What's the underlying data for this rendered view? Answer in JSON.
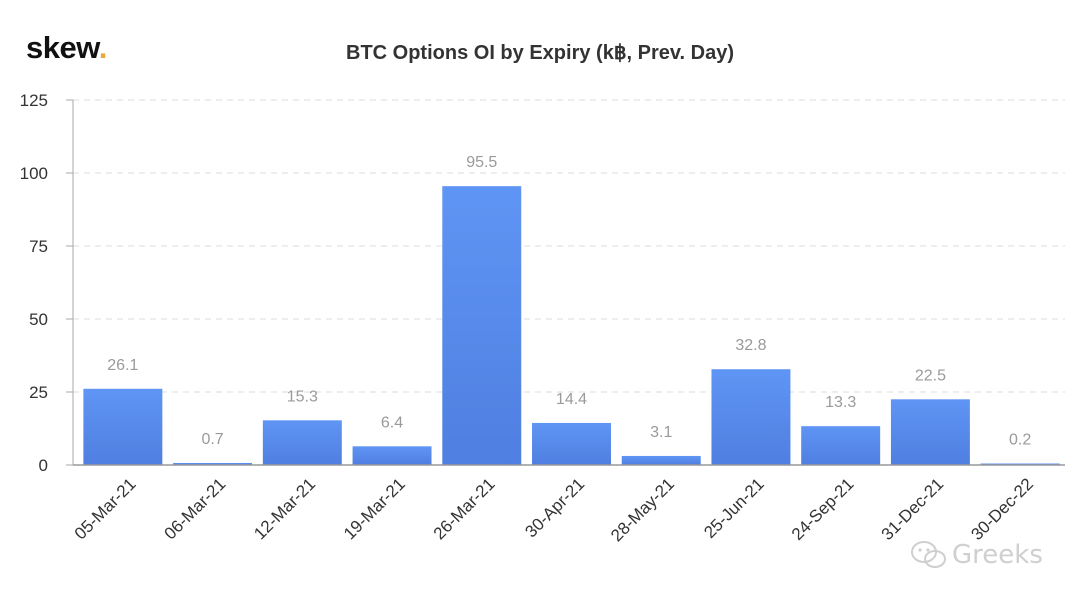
{
  "logo": {
    "text": "skew",
    "dot": "."
  },
  "chart_data": {
    "type": "bar",
    "title": "BTC Options OI by Expiry (k฿, Prev. Day)",
    "xlabel": "",
    "ylabel": "",
    "categories": [
      "05-Mar-21",
      "06-Mar-21",
      "12-Mar-21",
      "19-Mar-21",
      "26-Mar-21",
      "30-Apr-21",
      "28-May-21",
      "25-Jun-21",
      "24-Sep-21",
      "31-Dec-21",
      "30-Dec-22"
    ],
    "values": [
      26.1,
      0.7,
      15.3,
      6.4,
      95.5,
      14.4,
      3.1,
      32.8,
      13.3,
      22.5,
      0.2
    ],
    "data_labels": [
      "26.1",
      "0.7",
      "15.3",
      "6.4",
      "95.5",
      "14.4",
      "3.1",
      "32.8",
      "13.3",
      "22.5",
      "0.2"
    ],
    "ylim": [
      0,
      125
    ],
    "yticks": [
      0,
      25,
      50,
      75,
      100,
      125
    ],
    "grid": true,
    "bar_color": "#5b8ff0",
    "label_color": "#9a9a9a"
  },
  "watermark": {
    "text": "Greeks",
    "icon": "wechat-icon"
  }
}
